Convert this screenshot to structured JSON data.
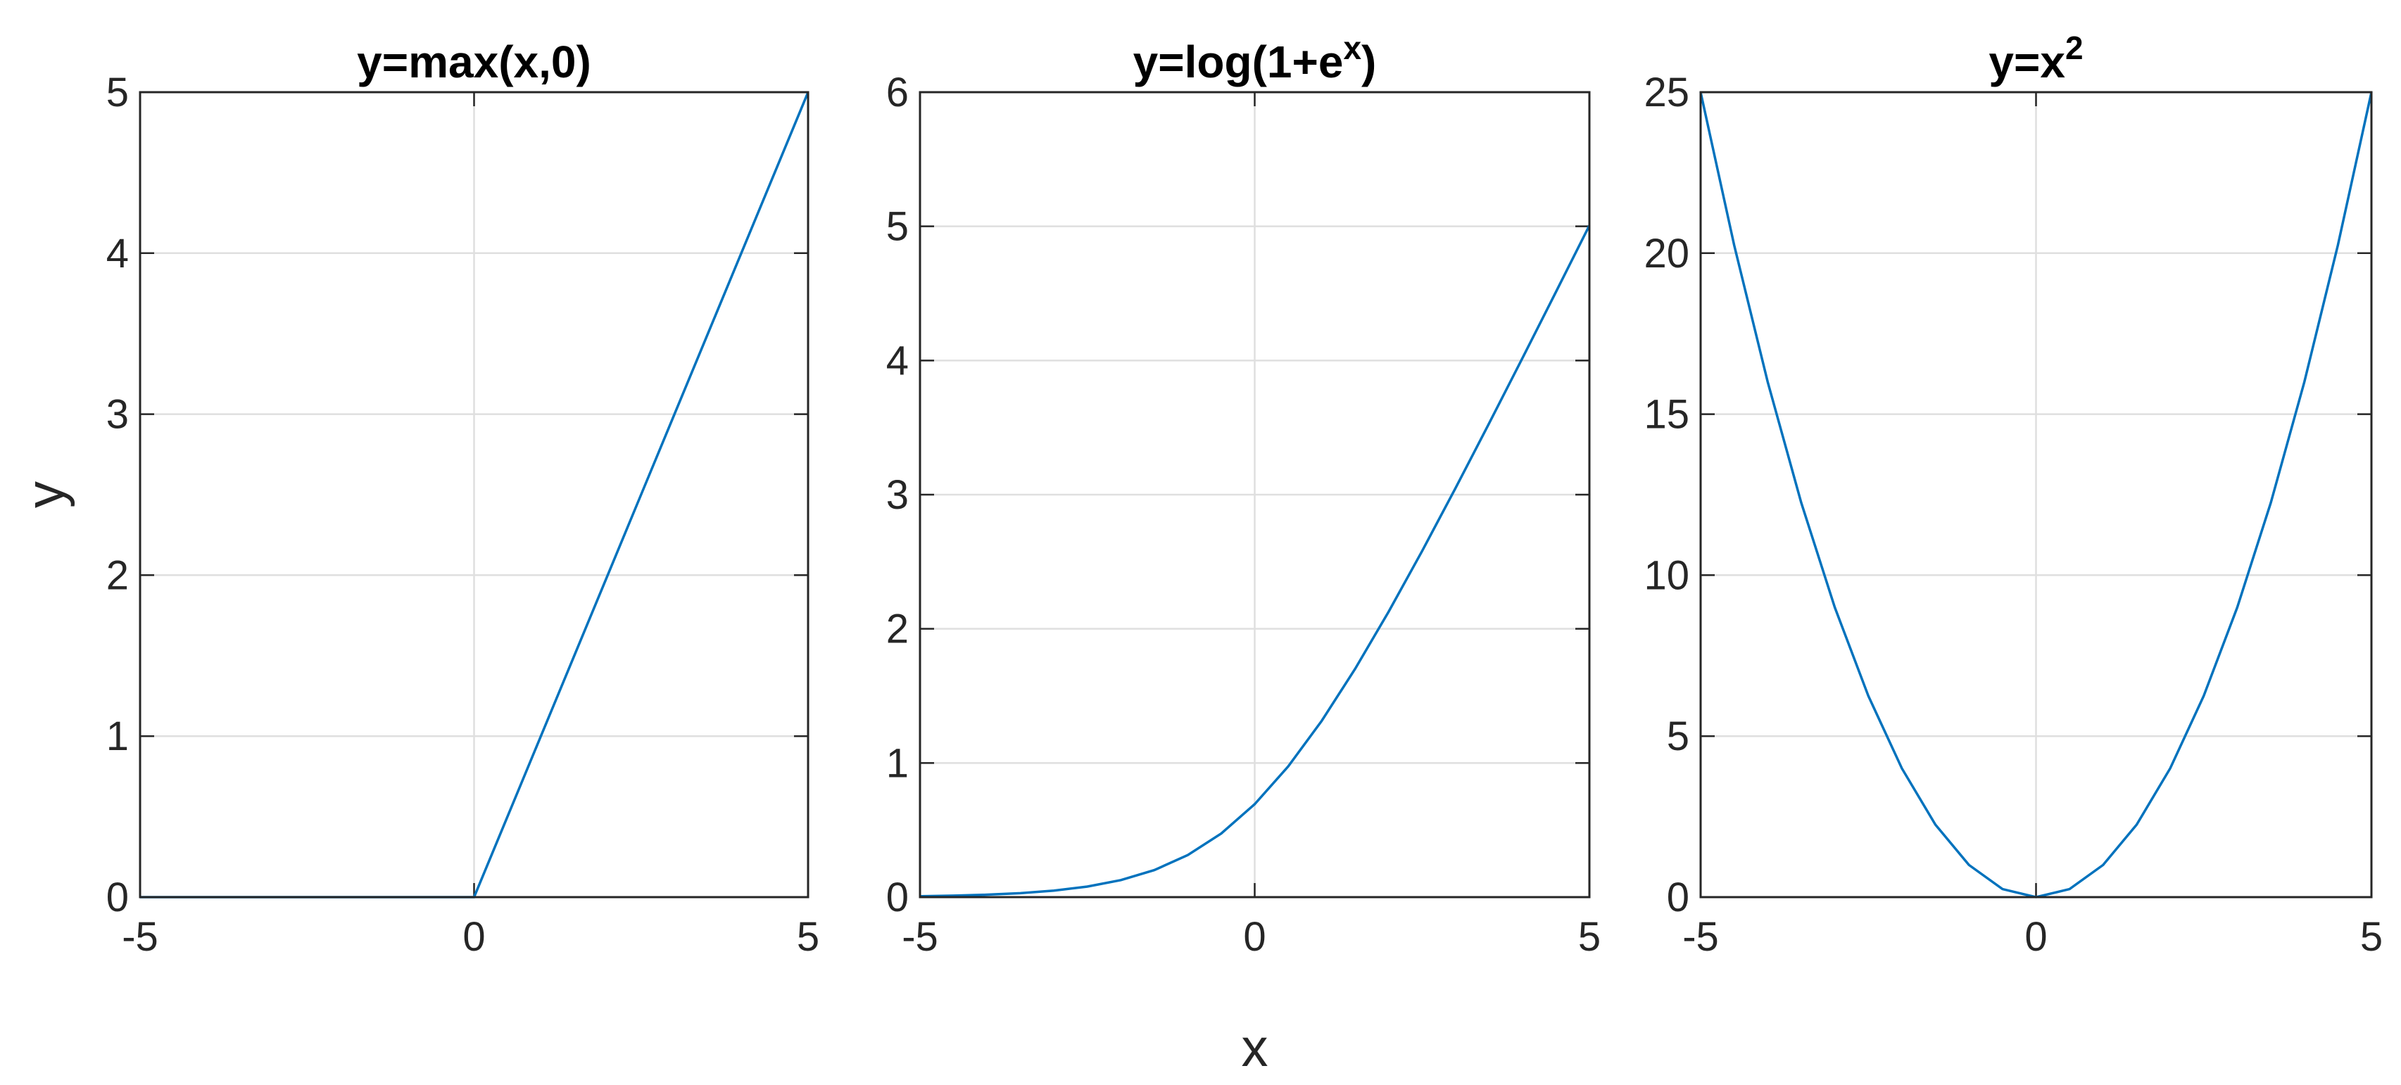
{
  "chart_data": [
    {
      "type": "line",
      "title": "y=max(x,0)",
      "ylabel": "y",
      "color": "#0072bd",
      "grid": true,
      "x": [
        -5,
        -4.5,
        -4,
        -3.5,
        -3,
        -2.5,
        -2,
        -1.5,
        -1,
        -0.5,
        0,
        0.5,
        1,
        1.5,
        2,
        2.5,
        3,
        3.5,
        4,
        4.5,
        5
      ],
      "values": [
        0,
        0,
        0,
        0,
        0,
        0,
        0,
        0,
        0,
        0,
        0,
        0.5,
        1,
        1.5,
        2,
        2.5,
        3,
        3.5,
        4,
        4.5,
        5
      ],
      "xlim": [
        -5,
        5
      ],
      "xticks": [
        -5,
        0,
        5
      ],
      "ylim": [
        0,
        5
      ],
      "yticks": [
        0,
        1,
        2,
        3,
        4,
        5
      ]
    },
    {
      "type": "line",
      "title": {
        "base": "y=log(1+e",
        "sup": "x",
        "tail": ")"
      },
      "xlabel": "x",
      "color": "#0072bd",
      "grid": true,
      "x": [
        -5,
        -4.5,
        -4,
        -3.5,
        -3,
        -2.5,
        -2,
        -1.5,
        -1,
        -0.5,
        0,
        0.5,
        1,
        1.5,
        2,
        2.5,
        3,
        3.5,
        4,
        4.5,
        5
      ],
      "values": [
        0.0067,
        0.011,
        0.0181,
        0.0298,
        0.0486,
        0.0789,
        0.1269,
        0.2014,
        0.3133,
        0.4741,
        0.6931,
        0.9741,
        1.3133,
        1.7014,
        2.1269,
        2.5789,
        3.0486,
        3.5298,
        4.0181,
        4.511,
        5.0067
      ],
      "xlim": [
        -5,
        5
      ],
      "xticks": [
        -5,
        0,
        5
      ],
      "ylim": [
        0,
        6
      ],
      "yticks": [
        0,
        1,
        2,
        3,
        4,
        5,
        6
      ]
    },
    {
      "type": "line",
      "title": {
        "base": "y=x",
        "sup": "2"
      },
      "color": "#0072bd",
      "grid": true,
      "x": [
        -5,
        -4.5,
        -4,
        -3.5,
        -3,
        -2.5,
        -2,
        -1.5,
        -1,
        -0.5,
        0,
        0.5,
        1,
        1.5,
        2,
        2.5,
        3,
        3.5,
        4,
        4.5,
        5
      ],
      "values": [
        25,
        20.25,
        16,
        12.25,
        9,
        6.25,
        4,
        2.25,
        1,
        0.25,
        0,
        0.25,
        1,
        2.25,
        4,
        6.25,
        9,
        12.25,
        16,
        20.25,
        25
      ],
      "xlim": [
        -5,
        5
      ],
      "xticks": [
        -5,
        0,
        5
      ],
      "ylim": [
        0,
        25
      ],
      "yticks": [
        0,
        5,
        10,
        15,
        20,
        25
      ]
    }
  ]
}
